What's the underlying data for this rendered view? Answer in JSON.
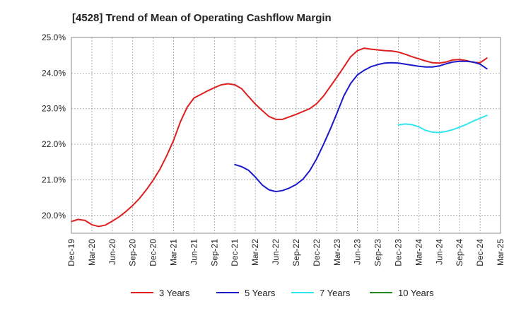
{
  "chart_data": {
    "type": "line",
    "title": "[4528]  Trend of Mean of Operating Cashflow Margin",
    "xlabel": "",
    "ylabel": "",
    "grid": true,
    "legend_position": "bottom",
    "ylim": [
      19.5,
      25.0
    ],
    "y_ticks": [
      20.0,
      21.0,
      22.0,
      23.0,
      24.0,
      25.0
    ],
    "y_tick_labels": [
      "20.0%",
      "21.0%",
      "22.0%",
      "23.0%",
      "24.0%",
      "25.0%"
    ],
    "x_tick_labels": [
      "Dec-19",
      "Mar-20",
      "Jun-20",
      "Sep-20",
      "Dec-20",
      "Mar-21",
      "Jun-21",
      "Sep-21",
      "Dec-21",
      "Mar-22",
      "Jun-22",
      "Sep-22",
      "Dec-22",
      "Mar-23",
      "Jun-23",
      "Sep-23",
      "Dec-23",
      "Mar-24",
      "Jun-24",
      "Sep-24",
      "Dec-24",
      "Mar-25"
    ],
    "series": [
      {
        "name": "3 Years",
        "color": "#dd1f1f",
        "start_index": 0,
        "values": [
          19.83,
          19.89,
          19.86,
          19.74,
          19.69,
          19.73,
          19.84,
          19.96,
          20.11,
          20.28,
          20.48,
          20.72,
          20.99,
          21.3,
          21.68,
          22.11,
          22.63,
          23.04,
          23.3,
          23.4,
          23.5,
          23.59,
          23.67,
          23.7,
          23.67,
          23.56,
          23.34,
          23.13,
          22.95,
          22.78,
          22.7,
          22.7,
          22.77,
          22.84,
          22.92,
          23.0,
          23.14,
          23.35,
          23.62,
          23.89,
          24.17,
          24.46,
          24.63,
          24.7,
          24.67,
          24.65,
          24.63,
          24.62,
          24.59,
          24.53,
          24.46,
          24.4,
          24.34,
          24.29,
          24.28,
          24.31,
          24.37,
          24.38,
          24.35,
          24.3,
          24.29,
          24.42
        ]
      },
      {
        "name": "5 Years",
        "color": "#1a1ac8",
        "start_index": 24,
        "values": [
          21.43,
          21.37,
          21.27,
          21.08,
          20.86,
          20.72,
          20.67,
          20.7,
          20.77,
          20.87,
          21.02,
          21.26,
          21.59,
          21.99,
          22.42,
          22.88,
          23.36,
          23.71,
          23.95,
          24.08,
          24.18,
          24.24,
          24.28,
          24.29,
          24.28,
          24.25,
          24.22,
          24.19,
          24.17,
          24.17,
          24.2,
          24.26,
          24.31,
          24.33,
          24.33,
          24.31,
          24.25,
          24.12
        ]
      },
      {
        "name": "7 Years",
        "color": "#33e5ee",
        "start_index": 48,
        "values": [
          22.54,
          22.57,
          22.55,
          22.49,
          22.39,
          22.34,
          22.33,
          22.36,
          22.41,
          22.48,
          22.56,
          22.65,
          22.73,
          22.81
        ]
      },
      {
        "name": "10 Years",
        "color": "#228822",
        "start_index": 0,
        "values": []
      }
    ]
  }
}
